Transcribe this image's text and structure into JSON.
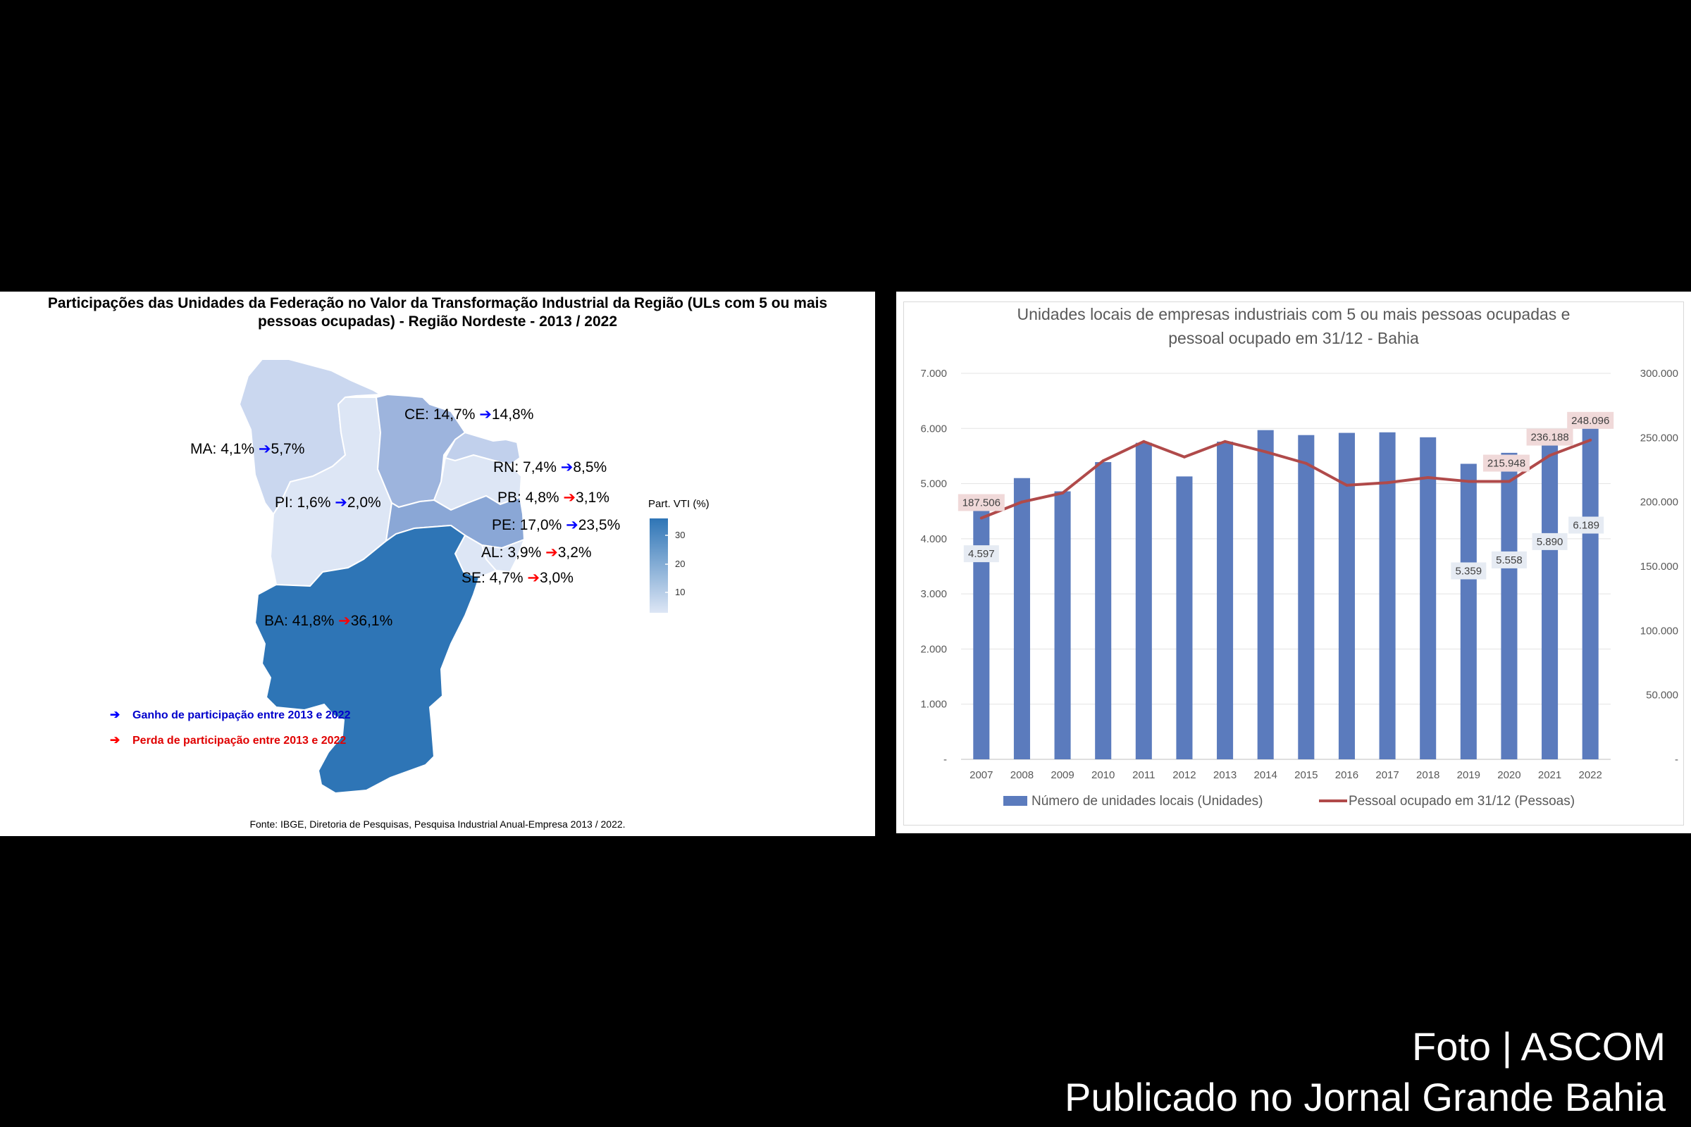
{
  "map": {
    "title_line1": "Participações das Unidades da Federação no Valor da Transformação Industrial da Região (ULs com 5 ou mais",
    "title_line2": "pessoas ocupadas) - Região Nordeste - 2013 / 2022",
    "legend_title": "Part. VTI (%)",
    "legend_ticks": [
      "30",
      "20",
      "10"
    ],
    "arrow_glyph": "➔",
    "states": [
      {
        "uf": "MA:",
        "v2013": "4,1%",
        "v2022": "5,7%",
        "trend": "gain"
      },
      {
        "uf": "CE:",
        "v2013": "14,7%",
        "v2022": "14,8%",
        "trend": "gain"
      },
      {
        "uf": "RN:",
        "v2013": "7,4%",
        "v2022": "8,5%",
        "trend": "gain"
      },
      {
        "uf": "PB:",
        "v2013": "4,8%",
        "v2022": "3,1%",
        "trend": "loss"
      },
      {
        "uf": "PI:",
        "v2013": "1,6%",
        "v2022": "2,0%",
        "trend": "gain"
      },
      {
        "uf": "PE:",
        "v2013": "17,0%",
        "v2022": "23,5%",
        "trend": "gain"
      },
      {
        "uf": "AL:",
        "v2013": "3,9%",
        "v2022": "3,2%",
        "trend": "loss"
      },
      {
        "uf": "SE:",
        "v2013": "4,7%",
        "v2022": "3,0%",
        "trend": "loss"
      },
      {
        "uf": "BA:",
        "v2013": "41,8%",
        "v2022": "36,1%",
        "trend": "loss"
      }
    ],
    "legend_gain": "Ganho de participação entre 2013 e 2022",
    "legend_loss": "Perda de participação entre 2013 e 2022",
    "gain_color": "#0000ff",
    "loss_color": "#ff0000",
    "source": "Fonte: IBGE, Diretoria de Pesquisas, Pesquisa Industrial Anual-Empresa 2013 / 2022."
  },
  "chart_data": {
    "type": "bar",
    "title_line1": "Unidades locais de empresas industriais com 5 ou mais pessoas ocupadas e",
    "title_line2": "pessoal ocupado em 31/12 - Bahia",
    "categories": [
      "2007",
      "2008",
      "2009",
      "2010",
      "2011",
      "2012",
      "2013",
      "2014",
      "2015",
      "2016",
      "2017",
      "2018",
      "2019",
      "2020",
      "2021",
      "2022"
    ],
    "series": [
      {
        "name": "Número de unidades locais (Unidades)",
        "type": "bar",
        "axis": "left",
        "color": "#5b7bbd",
        "values": [
          4597,
          5100,
          4860,
          5390,
          5740,
          5130,
          5760,
          5970,
          5880,
          5920,
          5930,
          5840,
          5359,
          5558,
          5890,
          6189
        ]
      },
      {
        "name": "Pessoal ocupado em 31/12 (Pessoas)",
        "type": "line",
        "axis": "right",
        "color": "#b04a4a",
        "values": [
          187506,
          200000,
          207000,
          232000,
          247000,
          235000,
          247000,
          239000,
          230000,
          213000,
          215000,
          219000,
          216000,
          215948,
          236188,
          248096
        ]
      }
    ],
    "bar_labels": [
      {
        "index": 0,
        "text": "4.597"
      },
      {
        "index": 12,
        "text": "5.359"
      },
      {
        "index": 13,
        "text": "5.558"
      },
      {
        "index": 14,
        "text": "5.890"
      },
      {
        "index": 15,
        "text": "6.189"
      }
    ],
    "line_labels": [
      {
        "index": 0,
        "text": "187.506"
      },
      {
        "index": 13,
        "text": "215.948"
      },
      {
        "index": 14,
        "text": "236.188"
      },
      {
        "index": 15,
        "text": "248.096"
      }
    ],
    "y_left": {
      "min": 0,
      "max": 7000,
      "ticks": [
        "-",
        "1.000",
        "2.000",
        "3.000",
        "4.000",
        "5.000",
        "6.000",
        "7.000"
      ]
    },
    "y_right": {
      "min": 0,
      "max": 300000,
      "ticks": [
        "-",
        "50.000",
        "100.000",
        "150.000",
        "200.000",
        "250.000",
        "300.000"
      ]
    },
    "grid": true,
    "legend_position": "bottom"
  },
  "credit": {
    "line1": "Foto | ASCOM",
    "line2": "Publicado no Jornal Grande Bahia"
  }
}
